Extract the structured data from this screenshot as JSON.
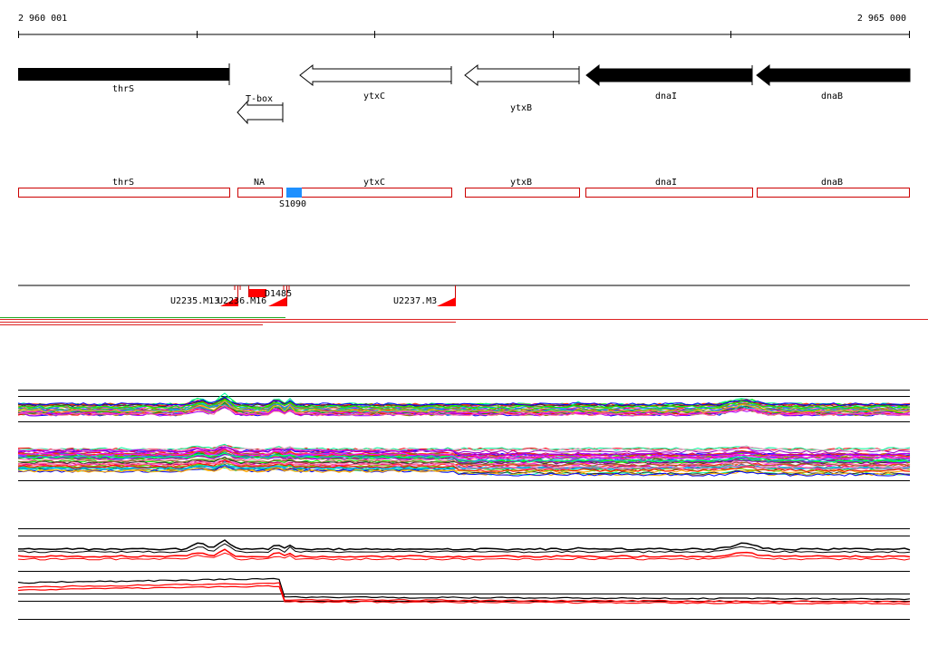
{
  "ruler": {
    "start_label": "2 960 001",
    "end_label": "2 965 000"
  },
  "genes": [
    {
      "name": "thrS",
      "filled": true,
      "direction": "right"
    },
    {
      "name": "T-box",
      "filled": false,
      "direction": "left"
    },
    {
      "name": "ytxC",
      "filled": false,
      "direction": "left"
    },
    {
      "name": "ytxB",
      "filled": false,
      "direction": "left"
    },
    {
      "name": "dnaI",
      "filled": true,
      "direction": "left"
    },
    {
      "name": "dnaB",
      "filled": true,
      "direction": "left"
    }
  ],
  "transcripts": [
    {
      "label": "thrS"
    },
    {
      "label": "NA"
    },
    {
      "label": "ytxC"
    },
    {
      "label": "ytxB"
    },
    {
      "label": "dnaI"
    },
    {
      "label": "dnaB"
    }
  ],
  "segment": {
    "label": "S1090",
    "color": "#1e90ff"
  },
  "upshifts": [
    {
      "label": "U2235.M13"
    },
    {
      "label": "U2236.M16"
    },
    {
      "label": "U2237.M3"
    }
  ],
  "downshift": {
    "label": "D1485"
  },
  "colors": {
    "transcript_outline": "#cc0000",
    "marker_red": "#ff0000",
    "separator_red": "#dd2222",
    "separator_green": "#22aa22",
    "gene_fill": "#000000"
  }
}
